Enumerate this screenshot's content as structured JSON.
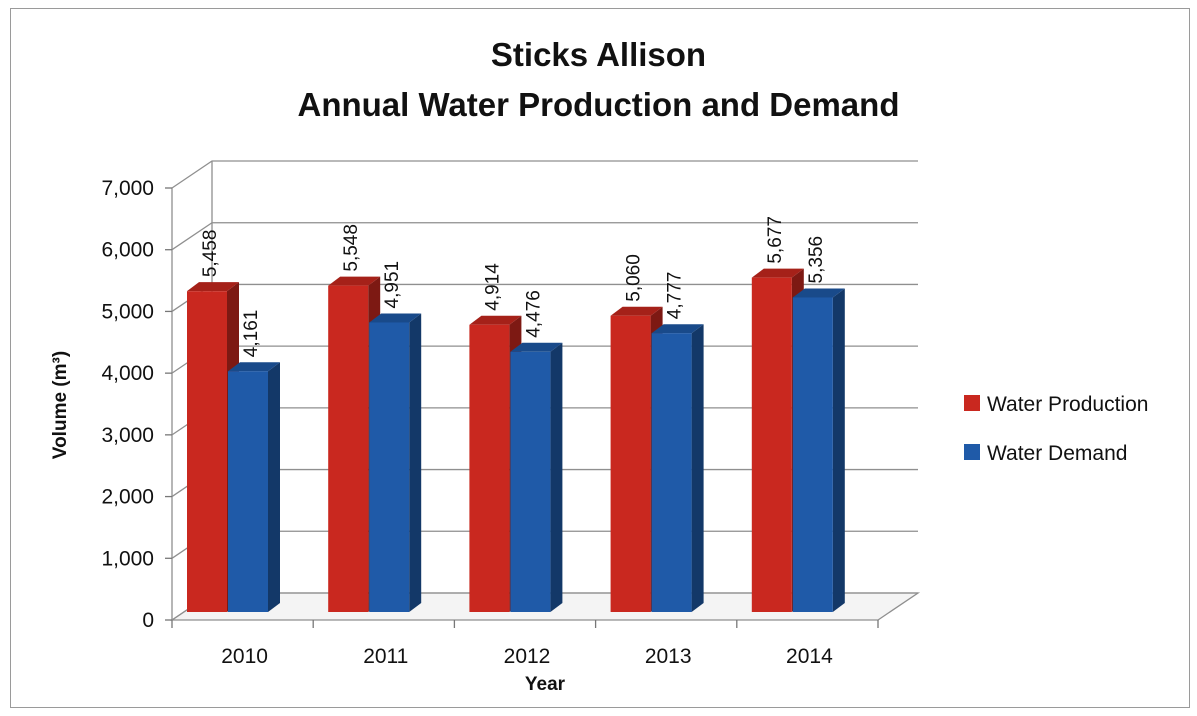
{
  "chart_data": {
    "type": "bar",
    "title": [
      "Sticks Allison",
      "Annual Water Production and Demand"
    ],
    "xlabel": "Year",
    "ylabel": "Volume (m³)",
    "categories": [
      "2010",
      "2011",
      "2012",
      "2013",
      "2014"
    ],
    "series": [
      {
        "name": "Water Production",
        "color": "#c9281f",
        "values": [
          5458,
          5548,
          4914,
          5060,
          5677
        ],
        "labels": [
          "5,458",
          "5,548",
          "4,914",
          "5,060",
          "5,677"
        ]
      },
      {
        "name": "Water Demand",
        "color": "#1f5aa8",
        "values": [
          4161,
          4951,
          4476,
          4777,
          5356
        ],
        "labels": [
          "4,161",
          "4,951",
          "4,476",
          "4,777",
          "5,356"
        ]
      }
    ],
    "ylim": [
      0,
      7000
    ],
    "yticks": [
      "0",
      "1,000",
      "2,000",
      "3,000",
      "4,000",
      "5,000",
      "6,000",
      "7,000"
    ],
    "grid": true,
    "legend_position": "right",
    "style": "3d-clustered-column"
  }
}
